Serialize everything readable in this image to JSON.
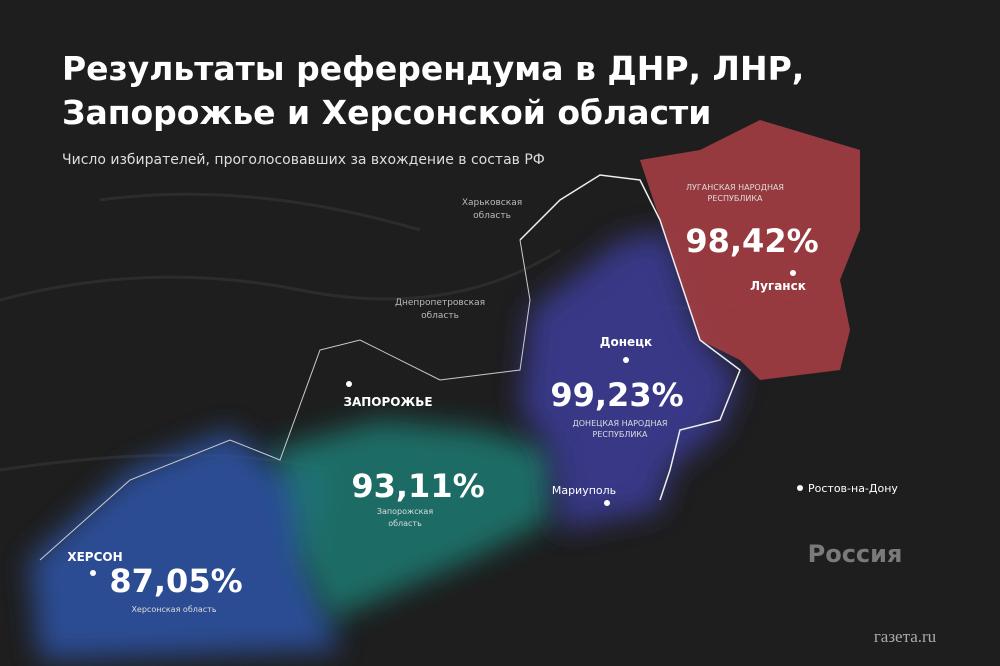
{
  "header": {
    "title_lines": [
      "Результаты референдума в ДНР, ЛНР,",
      "Запорожье и Херсонской области"
    ],
    "subtitle": "Число избирателей, проголосовавших за вхождение в состав РФ"
  },
  "regions": [
    {
      "name_lines": [
        "ЛУГАНСКАЯ НАРОДНАЯ",
        "РЕСПУБЛИКА"
      ],
      "result": "98,42%"
    },
    {
      "name_lines": [
        "ДОНЕЦКАЯ НАРОДНАЯ",
        "РЕСПУБЛИКА"
      ],
      "result": "99,23%"
    },
    {
      "name_lines": [
        "Запорожская",
        "область"
      ],
      "result": "93,11%"
    },
    {
      "name_lines": [
        "Херсонская область"
      ],
      "result": "87,05%"
    }
  ],
  "neighbor_regions": [
    {
      "name_lines": [
        "Харьковская",
        "область"
      ]
    },
    {
      "name_lines": [
        "Днепропетровская",
        "область"
      ]
    }
  ],
  "cities": [
    "Луганск",
    "Донецк",
    "ЗАПОРОЖЬЕ",
    "Мариуполь",
    "ХЕРСОН",
    "Ростов-на-Дону"
  ],
  "country": "Россия",
  "logo": "газета.ru"
}
